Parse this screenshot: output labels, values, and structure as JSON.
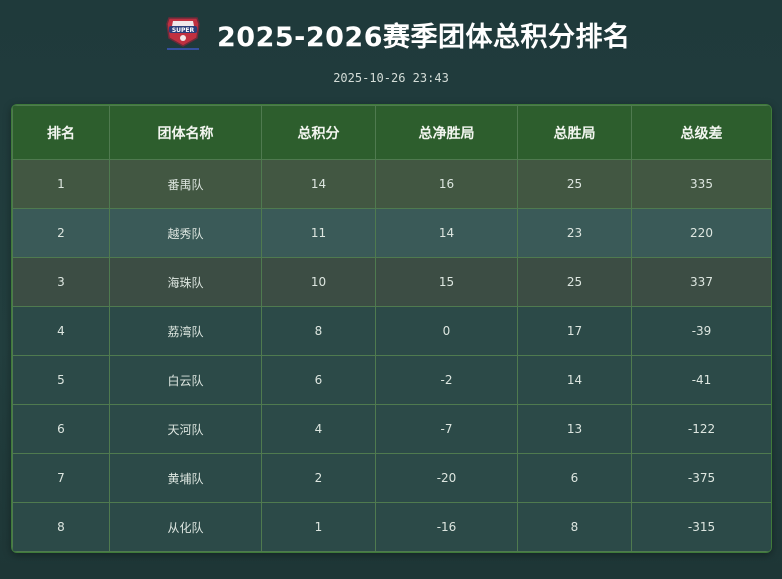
{
  "header": {
    "title": "2025-2026赛季团体总积分排名",
    "timestamp": "2025-10-26 23:43",
    "logo_text": "SUPER"
  },
  "table": {
    "columns": [
      "排名",
      "团体名称",
      "总积分",
      "总净胜局",
      "总胜局",
      "总级差"
    ],
    "rows": [
      [
        "1",
        "番禺队",
        "14",
        "16",
        "25",
        "335"
      ],
      [
        "2",
        "越秀队",
        "11",
        "14",
        "23",
        "220"
      ],
      [
        "3",
        "海珠队",
        "10",
        "15",
        "25",
        "337"
      ],
      [
        "4",
        "荔湾队",
        "8",
        "0",
        "17",
        "-39"
      ],
      [
        "5",
        "白云队",
        "6",
        "-2",
        "14",
        "-41"
      ],
      [
        "6",
        "天河队",
        "4",
        "-7",
        "13",
        "-122"
      ],
      [
        "7",
        "黄埔队",
        "2",
        "-20",
        "6",
        "-375"
      ],
      [
        "8",
        "从化队",
        "1",
        "-16",
        "8",
        "-315"
      ]
    ]
  },
  "colors": {
    "background": "#1f3a3b",
    "header_row": "#2d5e2d",
    "row_first": "#425742",
    "row_second": "#3a5a58",
    "row_third": "#3c4d44",
    "row_other": "#2c4a48"
  }
}
